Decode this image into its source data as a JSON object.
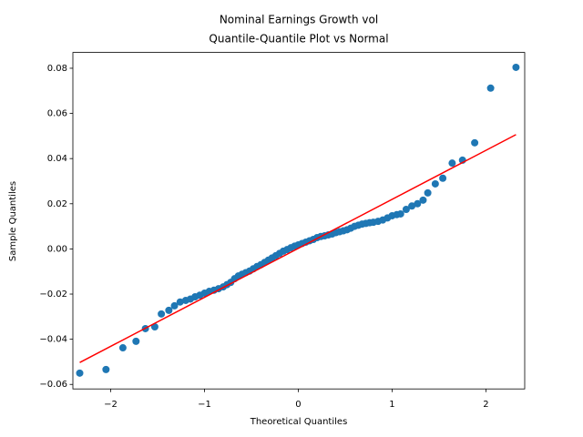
{
  "chart_data": {
    "type": "scatter",
    "title": "Nominal Earnings Growth vol",
    "subtitle": "Quantile-Quantile Plot vs Normal",
    "x_label": "Theoretical Quantiles",
    "y_label": "Sample Quantiles",
    "xlim": [
      -2.403,
      2.413
    ],
    "ylim": [
      -0.062,
      0.087
    ],
    "xticks": [
      {
        "value": -2,
        "label": "−2"
      },
      {
        "value": -1,
        "label": "−1"
      },
      0,
      1,
      2
    ],
    "yticks": [
      {
        "value": -0.06,
        "label": "−0.06"
      },
      {
        "value": -0.04,
        "label": "−0.04"
      },
      {
        "value": -0.02,
        "label": "−0.02"
      },
      {
        "value": 0,
        "label": "0.00"
      },
      {
        "value": 0.02,
        "label": "0.02"
      },
      {
        "value": 0.04,
        "label": "0.04"
      },
      {
        "value": 0.06,
        "label": "0.06"
      },
      {
        "value": 0.08,
        "label": "0.08"
      }
    ],
    "grid": false,
    "series": [
      {
        "mode": "markers",
        "color": "#1f77b4",
        "x": [
          -2.33,
          -2.05,
          -1.87,
          -1.73,
          -1.63,
          -1.53,
          -1.46,
          -1.38,
          -1.32,
          -1.26,
          -1.2,
          -1.15,
          -1.1,
          -1.05,
          -1.0,
          -0.95,
          -0.9,
          -0.85,
          -0.8,
          -0.76,
          -0.72,
          -0.68,
          -0.64,
          -0.6,
          -0.56,
          -0.52,
          -0.48,
          -0.44,
          -0.4,
          -0.36,
          -0.32,
          -0.28,
          -0.24,
          -0.2,
          -0.16,
          -0.12,
          -0.08,
          -0.04,
          0.0,
          0.04,
          0.08,
          0.12,
          0.16,
          0.2,
          0.24,
          0.28,
          0.32,
          0.36,
          0.4,
          0.44,
          0.48,
          0.52,
          0.56,
          0.6,
          0.64,
          0.68,
          0.72,
          0.76,
          0.8,
          0.85,
          0.9,
          0.95,
          1.0,
          1.05,
          1.09,
          1.15,
          1.21,
          1.27,
          1.33,
          1.38,
          1.46,
          1.54,
          1.64,
          1.75,
          1.88,
          2.05,
          2.32
        ],
        "values": [
          -0.055,
          -0.0534,
          -0.0438,
          -0.0409,
          -0.0353,
          -0.0345,
          -0.0288,
          -0.0272,
          -0.0252,
          -0.0235,
          -0.0228,
          -0.0222,
          -0.0212,
          -0.0205,
          -0.0196,
          -0.0188,
          -0.0183,
          -0.0176,
          -0.0168,
          -0.0158,
          -0.0148,
          -0.0132,
          -0.012,
          -0.0112,
          -0.0105,
          -0.0098,
          -0.0088,
          -0.0078,
          -0.007,
          -0.006,
          -0.005,
          -0.004,
          -0.003,
          -0.002,
          -0.001,
          -0.0003,
          0.0005,
          0.0012,
          0.0018,
          0.0024,
          0.003,
          0.0036,
          0.0042,
          0.005,
          0.0055,
          0.0058,
          0.0062,
          0.0066,
          0.0072,
          0.0076,
          0.008,
          0.0085,
          0.0092,
          0.01,
          0.0105,
          0.011,
          0.0113,
          0.0116,
          0.0118,
          0.0122,
          0.0128,
          0.0137,
          0.0147,
          0.0152,
          0.0155,
          0.0175,
          0.019,
          0.02,
          0.0216,
          0.0248,
          0.0288,
          0.0313,
          0.038,
          0.0393,
          0.047,
          0.0712,
          0.0804
        ]
      },
      {
        "mode": "line",
        "color": "#ff0000",
        "x": [
          -2.33,
          2.32
        ],
        "values": [
          -0.0503,
          0.0506
        ]
      }
    ]
  }
}
